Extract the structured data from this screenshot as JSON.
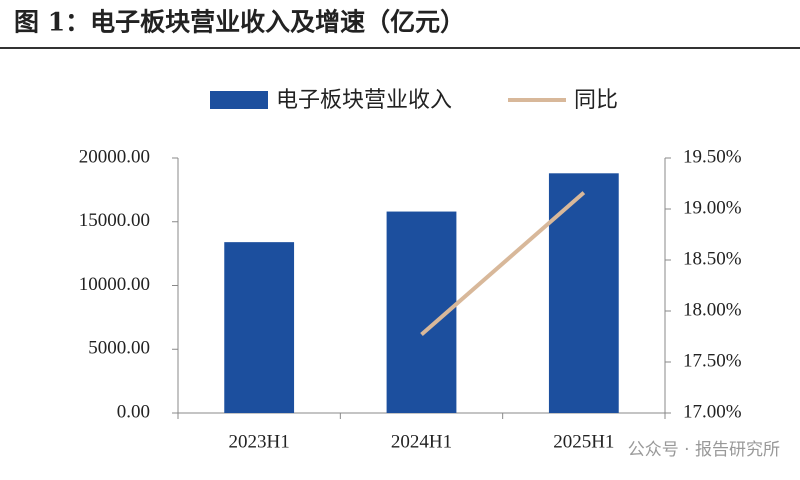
{
  "chart_data": {
    "type": "bar_line",
    "title": "图 1：电子板块营业收入及增速（亿元）",
    "categories": [
      "2023H1",
      "2024H1",
      "2025H1"
    ],
    "series": [
      {
        "name": "电子板块营业收入",
        "type": "bar",
        "color": "#1c4f9e",
        "values": [
          13400,
          15800,
          18800
        ]
      },
      {
        "name": "同比",
        "type": "line",
        "axis": "y2",
        "color": "#d8b89a",
        "values": [
          null,
          17.77,
          19.16
        ]
      }
    ],
    "ylim": [
      0,
      20000
    ],
    "yticks": [
      {
        "value": 0,
        "label": "0.00"
      },
      {
        "value": 5000,
        "label": "5000.00"
      },
      {
        "value": 10000,
        "label": "10000.00"
      },
      {
        "value": 15000,
        "label": "15000.00"
      },
      {
        "value": 20000,
        "label": "20000.00"
      }
    ],
    "y2lim": [
      17,
      19.5
    ],
    "y2ticks": [
      {
        "value": 17,
        "label": "17.00%"
      },
      {
        "value": 17.5,
        "label": "17.50%"
      },
      {
        "value": 18,
        "label": "18.00%"
      },
      {
        "value": 18.5,
        "label": "18.50%"
      },
      {
        "value": 19,
        "label": "19.00%"
      },
      {
        "value": 19.5,
        "label": "19.50%"
      }
    ],
    "grid": false,
    "legend": "top"
  },
  "watermark": "公众号 · 报告研究所"
}
